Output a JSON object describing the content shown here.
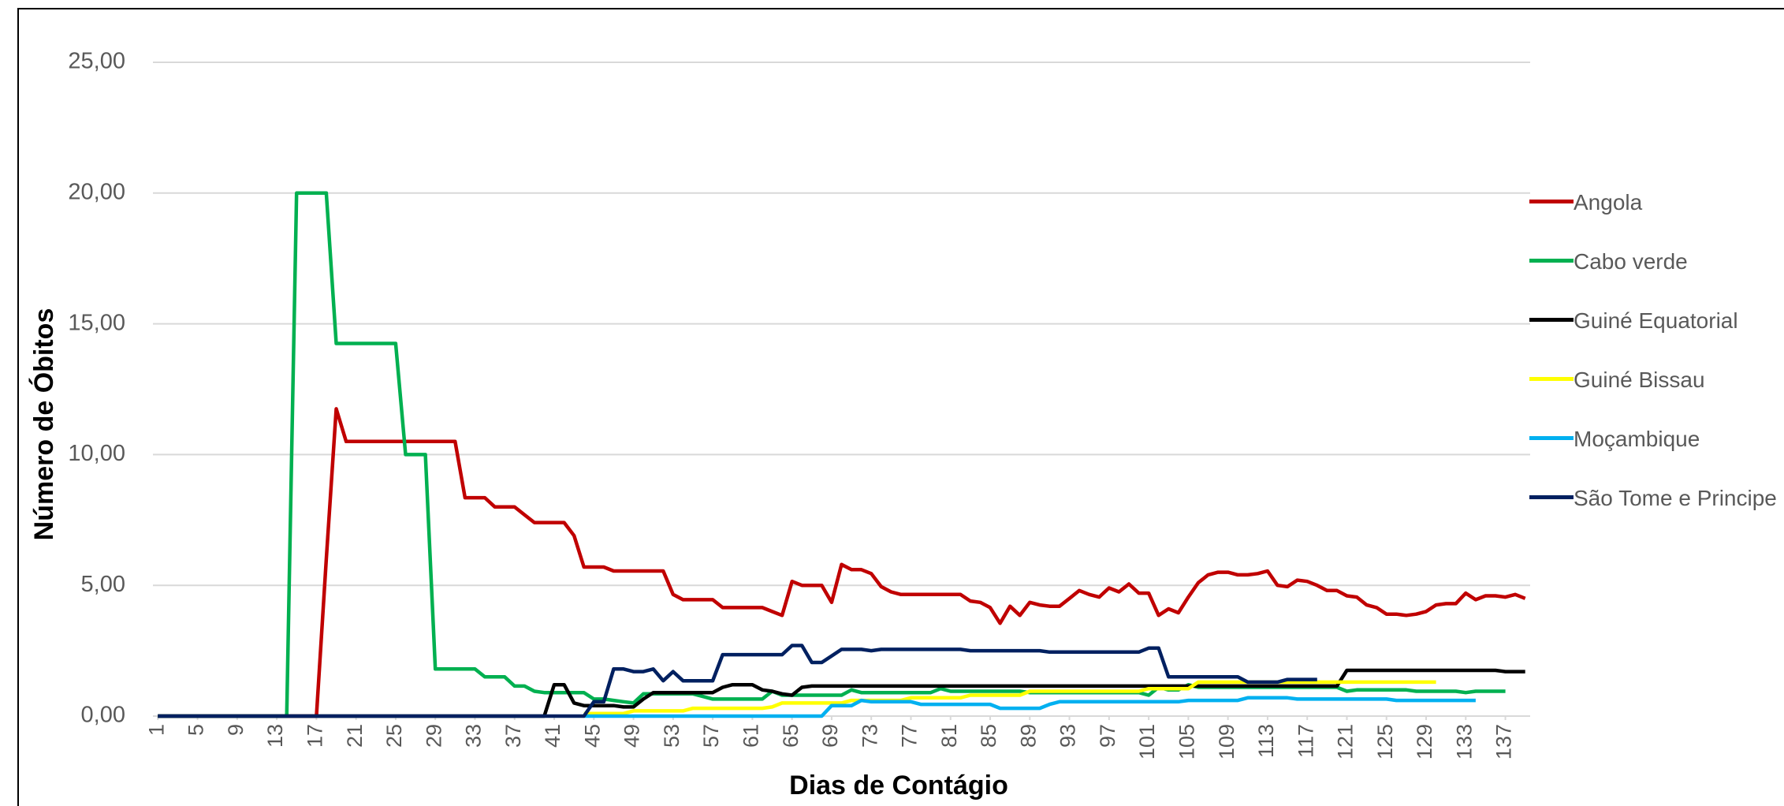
{
  "chart_data": {
    "type": "line",
    "xlabel": "Dias de Contágio",
    "ylabel": "Número de Óbitos",
    "x": [
      1,
      2,
      3,
      4,
      5,
      6,
      7,
      8,
      9,
      10,
      11,
      12,
      13,
      14,
      15,
      16,
      17,
      18,
      19,
      20,
      21,
      22,
      23,
      24,
      25,
      26,
      27,
      28,
      29,
      30,
      31,
      32,
      33,
      34,
      35,
      36,
      37,
      38,
      39,
      40,
      41,
      42,
      43,
      44,
      45,
      46,
      47,
      48,
      49,
      50,
      51,
      52,
      53,
      54,
      55,
      56,
      57,
      58,
      59,
      60,
      61,
      62,
      63,
      64,
      65,
      66,
      67,
      68,
      69,
      70,
      71,
      72,
      73,
      74,
      75,
      76,
      77,
      78,
      79,
      80,
      81,
      82,
      83,
      84,
      85,
      86,
      87,
      88,
      89,
      90,
      91,
      92,
      93,
      94,
      95,
      96,
      97,
      98,
      99,
      100,
      101,
      102,
      103,
      104,
      105,
      106,
      107,
      108,
      109,
      110,
      111,
      112,
      113,
      114,
      115,
      116,
      117,
      118,
      119,
      120,
      121,
      122,
      123,
      124,
      125,
      126,
      127,
      128,
      129,
      130,
      131,
      132,
      133,
      134,
      135,
      136,
      137,
      138,
      139
    ],
    "xlim": [
      0.5,
      139.5
    ],
    "xticks": [
      1,
      5,
      9,
      13,
      17,
      21,
      25,
      29,
      33,
      37,
      41,
      45,
      49,
      53,
      57,
      61,
      65,
      69,
      73,
      77,
      81,
      85,
      89,
      93,
      97,
      101,
      105,
      109,
      113,
      117,
      121,
      125,
      129,
      133,
      137
    ],
    "ylim": [
      0,
      25
    ],
    "yticks": [
      {
        "value": 0,
        "label": "0,00"
      },
      {
        "value": 5,
        "label": "5,00"
      },
      {
        "value": 10,
        "label": "10,00"
      },
      {
        "value": 15,
        "label": "15,00"
      },
      {
        "value": 20,
        "label": "20,00"
      },
      {
        "value": 25,
        "label": "25,00"
      }
    ],
    "grid": true,
    "legend": "right",
    "series": [
      {
        "name": "Angola",
        "color": "#c00000",
        "values": [
          0,
          0,
          0,
          0,
          0,
          0,
          0,
          0,
          0,
          0,
          0,
          0,
          0,
          0,
          0,
          0,
          0,
          6,
          11.75,
          10.5,
          10.5,
          10.5,
          10.5,
          10.5,
          10.5,
          10.5,
          10.5,
          10.5,
          10.5,
          10.5,
          10.5,
          8.35,
          8.35,
          8.35,
          8.0,
          8.0,
          8.0,
          7.7,
          7.4,
          7.4,
          7.4,
          7.4,
          6.9,
          5.7,
          5.7,
          5.7,
          5.55,
          5.55,
          5.55,
          5.55,
          5.55,
          5.55,
          4.65,
          4.45,
          4.45,
          4.45,
          4.45,
          4.15,
          4.15,
          4.15,
          4.15,
          4.15,
          4.0,
          3.85,
          5.15,
          5.0,
          5.0,
          5.0,
          4.35,
          5.8,
          5.6,
          5.6,
          5.45,
          4.95,
          4.75,
          4.65,
          4.65,
          4.65,
          4.65,
          4.65,
          4.65,
          4.65,
          4.4,
          4.35,
          4.15,
          3.55,
          4.2,
          3.85,
          4.35,
          4.25,
          4.2,
          4.2,
          4.5,
          4.8,
          4.65,
          4.55,
          4.9,
          4.75,
          5.05,
          4.7,
          4.7,
          3.85,
          4.1,
          3.95,
          4.55,
          5.1,
          5.4,
          5.5,
          5.5,
          5.4,
          5.4,
          5.45,
          5.55,
          5.0,
          4.95,
          5.2,
          5.15,
          5.0,
          4.8,
          4.8,
          4.6,
          4.55,
          4.25,
          4.15,
          3.9,
          3.9,
          3.85,
          3.9,
          4.0,
          4.25,
          4.3,
          4.3,
          4.7,
          4.45,
          4.6,
          4.6,
          4.55,
          4.65,
          4.5
        ]
      },
      {
        "name": "Cabo verde",
        "color": "#00b050",
        "values": [
          0,
          0,
          0,
          0,
          0,
          0,
          0,
          0,
          0,
          0,
          0,
          0,
          0,
          0,
          20,
          20,
          20,
          20,
          14.25,
          14.25,
          14.25,
          14.25,
          14.25,
          14.25,
          14.25,
          10,
          10,
          10,
          1.8,
          1.8,
          1.8,
          1.8,
          1.8,
          1.5,
          1.5,
          1.5,
          1.15,
          1.15,
          0.95,
          0.9,
          0.9,
          0.9,
          0.9,
          0.9,
          0.65,
          0.65,
          0.6,
          0.55,
          0.5,
          0.85,
          0.85,
          0.85,
          0.85,
          0.85,
          0.85,
          0.75,
          0.65,
          0.65,
          0.65,
          0.65,
          0.65,
          0.65,
          0.95,
          0.8,
          0.8,
          0.8,
          0.8,
          0.8,
          0.8,
          0.8,
          1.0,
          0.9,
          0.9,
          0.9,
          0.9,
          0.9,
          0.9,
          0.9,
          0.9,
          1.05,
          0.95,
          0.95,
          0.95,
          0.95,
          0.95,
          0.95,
          0.95,
          0.95,
          0.9,
          0.9,
          0.9,
          0.9,
          0.9,
          0.9,
          0.9,
          0.9,
          0.9,
          0.9,
          0.9,
          0.9,
          0.8,
          1.1,
          1.0,
          1.0,
          1.2,
          1.1,
          1.1,
          1.1,
          1.1,
          1.1,
          1.1,
          1.1,
          1.1,
          1.1,
          1.1,
          1.1,
          1.1,
          1.1,
          1.1,
          1.1,
          0.95,
          1.0,
          1.0,
          1.0,
          1.0,
          1.0,
          1.0,
          0.95,
          0.95,
          0.95,
          0.95,
          0.95,
          0.9,
          0.95,
          0.95,
          0.95,
          0.95,
          null,
          null
        ]
      },
      {
        "name": "Guiné Equatorial",
        "color": "#000000",
        "values": [
          0,
          0,
          0,
          0,
          0,
          0,
          0,
          0,
          0,
          0,
          0,
          0,
          0,
          0,
          0,
          0,
          0,
          0,
          0,
          0,
          0,
          0,
          0,
          0,
          0,
          0,
          0,
          0,
          0,
          0,
          0,
          0,
          0,
          0,
          0,
          0,
          0,
          0,
          0,
          0,
          1.2,
          1.2,
          0.5,
          0.4,
          0.4,
          0.4,
          0.4,
          0.35,
          0.35,
          0.65,
          0.9,
          0.9,
          0.9,
          0.9,
          0.9,
          0.9,
          0.9,
          1.1,
          1.2,
          1.2,
          1.2,
          1.0,
          0.95,
          0.85,
          0.8,
          1.1,
          1.15,
          1.15,
          1.15,
          1.15,
          1.15,
          1.15,
          1.15,
          1.15,
          1.15,
          1.15,
          1.15,
          1.15,
          1.15,
          1.15,
          1.15,
          1.15,
          1.15,
          1.15,
          1.15,
          1.15,
          1.15,
          1.15,
          1.15,
          1.15,
          1.15,
          1.15,
          1.15,
          1.15,
          1.15,
          1.15,
          1.15,
          1.15,
          1.15,
          1.15,
          1.15,
          1.15,
          1.15,
          1.15,
          1.15,
          1.15,
          1.15,
          1.15,
          1.15,
          1.15,
          1.15,
          1.15,
          1.15,
          1.15,
          1.15,
          1.15,
          1.15,
          1.15,
          1.15,
          1.15,
          1.75,
          1.75,
          1.75,
          1.75,
          1.75,
          1.75,
          1.75,
          1.75,
          1.75,
          1.75,
          1.75,
          1.75,
          1.75,
          1.75,
          1.75,
          1.75,
          1.7,
          1.7,
          1.7
        ]
      },
      {
        "name": "Guiné Bissau",
        "color": "#ffff00",
        "values": [
          null,
          null,
          null,
          null,
          null,
          null,
          null,
          null,
          null,
          null,
          null,
          null,
          null,
          null,
          null,
          null,
          null,
          null,
          null,
          null,
          null,
          null,
          null,
          null,
          null,
          null,
          null,
          null,
          null,
          null,
          null,
          null,
          null,
          null,
          null,
          null,
          null,
          null,
          null,
          null,
          null,
          null,
          null,
          0.1,
          0.1,
          0.1,
          0.1,
          0.1,
          0.2,
          0.2,
          0.2,
          0.2,
          0.2,
          0.2,
          0.3,
          0.3,
          0.3,
          0.3,
          0.3,
          0.3,
          0.3,
          0.3,
          0.35,
          0.5,
          0.5,
          0.5,
          0.5,
          0.5,
          0.5,
          0.5,
          0.6,
          0.6,
          0.6,
          0.6,
          0.6,
          0.6,
          0.7,
          0.7,
          0.7,
          0.7,
          0.7,
          0.7,
          0.8,
          0.8,
          0.8,
          0.8,
          0.8,
          0.8,
          0.95,
          0.95,
          0.95,
          0.95,
          0.95,
          0.95,
          0.95,
          0.95,
          0.95,
          0.95,
          0.95,
          0.95,
          1.05,
          1.05,
          1.05,
          1.05,
          1.05,
          1.3,
          1.3,
          1.3,
          1.3,
          1.3,
          1.3,
          1.3,
          1.3,
          1.3,
          1.3,
          1.3,
          1.3,
          1.3,
          1.3,
          1.3,
          1.3,
          1.3,
          1.3,
          1.3,
          1.3,
          1.3,
          1.3,
          1.3,
          1.3,
          1.3,
          null,
          null,
          null,
          null,
          null,
          null,
          null,
          null,
          null
        ]
      },
      {
        "name": "Moçambique",
        "color": "#00b0f0",
        "values": [
          null,
          null,
          null,
          null,
          null,
          null,
          null,
          null,
          null,
          null,
          null,
          null,
          null,
          null,
          null,
          null,
          null,
          null,
          null,
          null,
          null,
          null,
          null,
          null,
          null,
          null,
          null,
          null,
          null,
          null,
          null,
          null,
          null,
          null,
          null,
          null,
          null,
          null,
          null,
          null,
          null,
          null,
          null,
          0,
          0,
          0,
          0,
          0,
          0,
          0,
          0,
          0,
          0,
          0,
          0,
          0,
          0,
          0,
          0,
          0,
          0,
          0,
          0,
          0,
          0,
          0,
          0,
          0,
          0.4,
          0.4,
          0.4,
          0.6,
          0.55,
          0.55,
          0.55,
          0.55,
          0.55,
          0.45,
          0.45,
          0.45,
          0.45,
          0.45,
          0.45,
          0.45,
          0.45,
          0.3,
          0.3,
          0.3,
          0.3,
          0.3,
          0.45,
          0.55,
          0.55,
          0.55,
          0.55,
          0.55,
          0.55,
          0.55,
          0.55,
          0.55,
          0.55,
          0.55,
          0.55,
          0.55,
          0.6,
          0.6,
          0.6,
          0.6,
          0.6,
          0.6,
          0.7,
          0.7,
          0.7,
          0.7,
          0.7,
          0.65,
          0.65,
          0.65,
          0.65,
          0.65,
          0.65,
          0.65,
          0.65,
          0.65,
          0.65,
          0.6,
          0.6,
          0.6,
          0.6,
          0.6,
          0.6,
          0.6,
          0.6,
          0.6,
          null,
          null,
          null,
          null,
          null
        ]
      },
      {
        "name": "São Tome e Principe",
        "color": "#002060",
        "values": [
          0,
          0,
          0,
          0,
          0,
          0,
          0,
          0,
          0,
          0,
          0,
          0,
          0,
          0,
          0,
          0,
          0,
          0,
          0,
          0,
          0,
          0,
          0,
          0,
          0,
          0,
          0,
          0,
          0,
          0,
          0,
          0,
          0,
          0,
          0,
          0,
          0,
          0,
          0,
          0,
          0,
          0,
          0,
          0,
          0.55,
          0.55,
          1.8,
          1.8,
          1.7,
          1.7,
          1.8,
          1.35,
          1.7,
          1.35,
          1.35,
          1.35,
          1.35,
          2.35,
          2.35,
          2.35,
          2.35,
          2.35,
          2.35,
          2.35,
          2.7,
          2.7,
          2.05,
          2.05,
          2.3,
          2.55,
          2.55,
          2.55,
          2.5,
          2.55,
          2.55,
          2.55,
          2.55,
          2.55,
          2.55,
          2.55,
          2.55,
          2.55,
          2.5,
          2.5,
          2.5,
          2.5,
          2.5,
          2.5,
          2.5,
          2.5,
          2.45,
          2.45,
          2.45,
          2.45,
          2.45,
          2.45,
          2.45,
          2.45,
          2.45,
          2.45,
          2.6,
          2.6,
          1.5,
          1.5,
          1.5,
          1.5,
          1.5,
          1.5,
          1.5,
          1.5,
          1.3,
          1.3,
          1.3,
          1.3,
          1.4,
          1.4,
          1.4,
          1.4,
          null,
          null,
          null,
          null,
          null,
          null,
          null,
          null,
          null,
          null,
          null,
          null,
          null,
          null,
          null,
          null,
          null,
          null,
          null,
          null,
          null
        ]
      }
    ]
  }
}
